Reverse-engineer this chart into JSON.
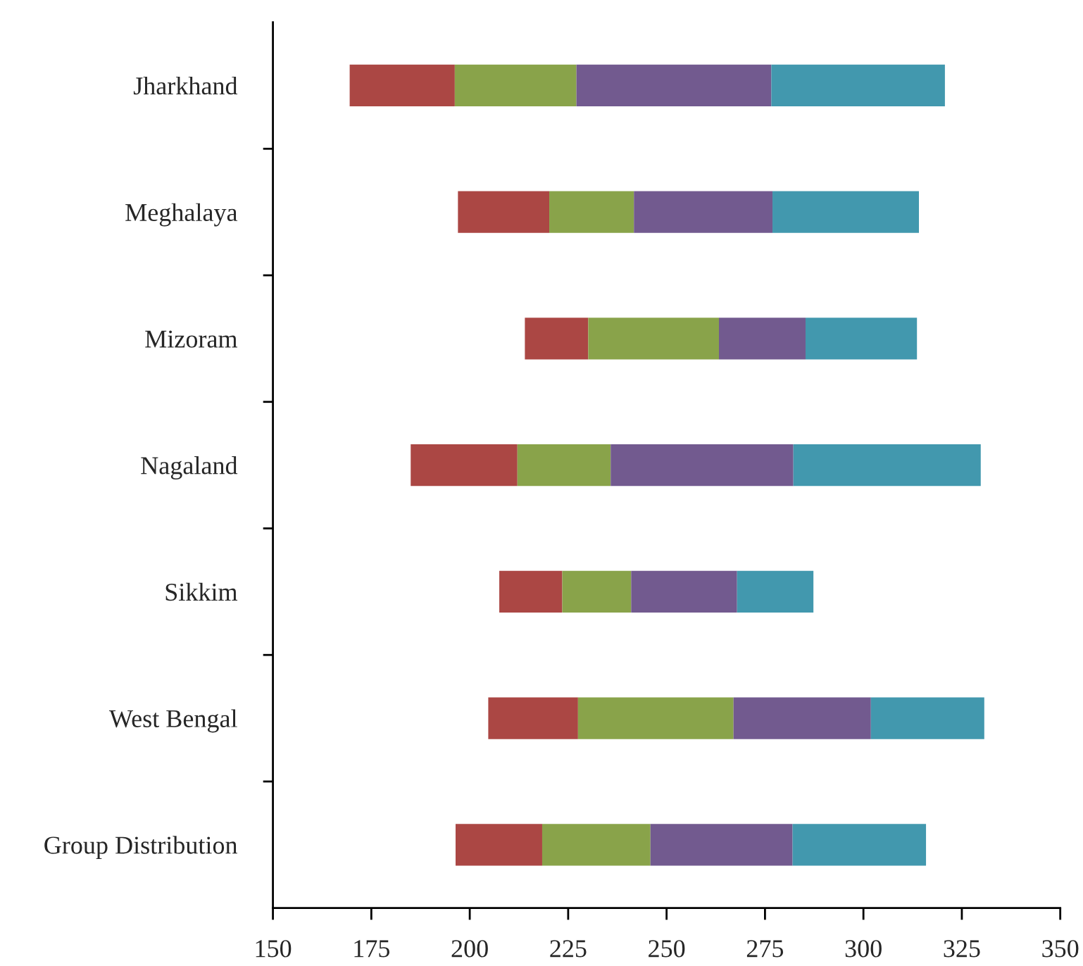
{
  "chart_data": {
    "type": "bar",
    "orientation": "horizontal",
    "categories": [
      "Jharkhand",
      "Meghalaya",
      "Mizoram",
      "Nagaland",
      "Sikkim",
      "West Bengal",
      "Group Distribution"
    ],
    "series": [
      {
        "color": "#ab4744",
        "base": [
          169.5,
          197,
          214,
          185,
          207.5,
          204.7,
          196.4
        ],
        "values": [
          26.7,
          23.2,
          16.1,
          27.1,
          16,
          22.8,
          22
        ]
      },
      {
        "color": "#89a34a",
        "base": [
          196.2,
          220.2,
          230.1,
          212.1,
          223.5,
          227.5,
          218.4
        ],
        "values": [
          30.9,
          21.5,
          33.2,
          23.7,
          17.5,
          39.5,
          27.5
        ]
      },
      {
        "color": "#725a8f",
        "base": [
          227.1,
          241.7,
          263.3,
          235.8,
          241,
          267,
          245.9
        ],
        "values": [
          49.5,
          35.2,
          22,
          46.4,
          26.9,
          34.9,
          36.1
        ]
      },
      {
        "color": "#4298ae",
        "base": [
          276.6,
          276.9,
          285.3,
          282.2,
          267.9,
          301.9,
          282
        ],
        "values": [
          44.1,
          37.2,
          28.3,
          47.6,
          19.4,
          28.8,
          33.9
        ]
      }
    ],
    "xlim": [
      150,
      350
    ],
    "xticks": [
      150,
      175,
      200,
      225,
      250,
      275,
      300,
      325,
      350
    ]
  }
}
